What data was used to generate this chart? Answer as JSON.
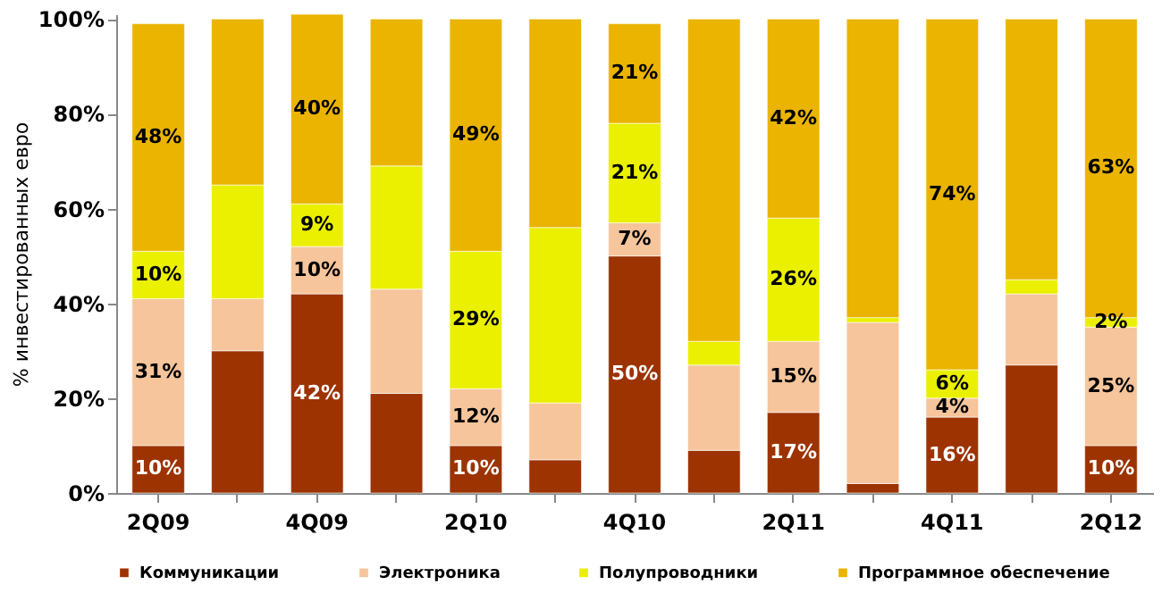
{
  "chart_data": {
    "type": "bar",
    "stacked": true,
    "ylabel": "% инвестированных евро",
    "categories": [
      "2Q09",
      null,
      "4Q09",
      null,
      "2Q10",
      null,
      "4Q10",
      null,
      "2Q11",
      null,
      "4Q11",
      null,
      "2Q12"
    ],
    "series": [
      {
        "name": "Коммуникации",
        "color": "#9c3300",
        "values": [
          10,
          30,
          42,
          21,
          10,
          7,
          50,
          9,
          17,
          2,
          16,
          27,
          10
        ],
        "value_labels": [
          "10%",
          null,
          "42%",
          null,
          "10%",
          null,
          "50%",
          null,
          "17%",
          null,
          "16%",
          null,
          "10%"
        ]
      },
      {
        "name": "Электроника",
        "color": "#f6c59c",
        "values": [
          31,
          11,
          10,
          22,
          12,
          12,
          7,
          18,
          15,
          34,
          4,
          15,
          25
        ],
        "value_labels": [
          "31%",
          null,
          "10%",
          null,
          "12%",
          null,
          "7%",
          null,
          "15%",
          null,
          "4%",
          null,
          "25%"
        ]
      },
      {
        "name": "Полупроводники",
        "color": "#eaf000",
        "values": [
          10,
          24,
          9,
          26,
          29,
          37,
          21,
          5,
          26,
          1,
          6,
          3,
          2
        ],
        "value_labels": [
          "10%",
          null,
          "9%",
          null,
          "29%",
          null,
          "21%",
          null,
          "26%",
          null,
          "6%",
          null,
          "2%"
        ]
      },
      {
        "name": "Программное обеспечение",
        "color": "#eab400",
        "values": [
          48,
          35,
          40,
          31,
          49,
          44,
          21,
          68,
          42,
          63,
          74,
          55,
          63
        ],
        "value_labels": [
          "48%",
          null,
          "40%",
          null,
          "49%",
          null,
          "21%",
          null,
          "42%",
          null,
          "74%",
          null,
          "63%"
        ]
      }
    ],
    "ylim": [
      0,
      101
    ],
    "yticks": [
      {
        "value": 0,
        "label": "0%"
      },
      {
        "value": 20,
        "label": "20%"
      },
      {
        "value": 40,
        "label": "40%"
      },
      {
        "value": 60,
        "label": "60%"
      },
      {
        "value": 80,
        "label": "80%"
      },
      {
        "value": 100,
        "label": "100%"
      }
    ],
    "grid": false,
    "legend": "bottom"
  }
}
